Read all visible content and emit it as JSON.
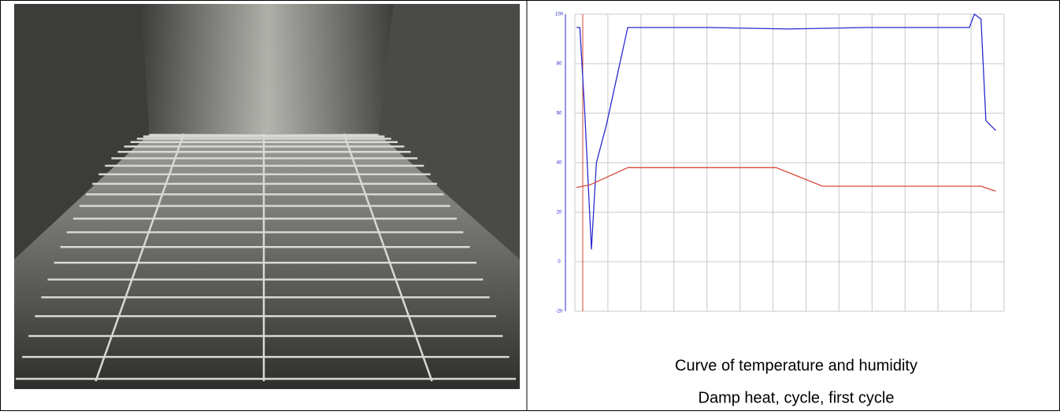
{
  "captions": [
    "Curve of temperature and humidity",
    "Damp heat, cycle, first cycle"
  ],
  "chart_data": {
    "type": "line",
    "xlim": [
      0,
      26
    ],
    "xticks": [
      0,
      2,
      4,
      6,
      8,
      10,
      12,
      14,
      16,
      18,
      20,
      22,
      24,
      26
    ],
    "ylim": [
      -20,
      100
    ],
    "yticks": [
      -20,
      0,
      20,
      40,
      60,
      80,
      100
    ],
    "grid": true,
    "series": [
      {
        "color": "#2a2ad0",
        "x": [
          0.1,
          0.3,
          0.6,
          1.0,
          1.3,
          1.9,
          3.2,
          8.1,
          12.9,
          17.7,
          23.9,
          24.2,
          24.6,
          24.9,
          25.2,
          25.5
        ],
        "values": [
          94.6,
          94.6,
          60,
          5,
          40,
          55,
          94.6,
          94.6,
          94,
          94.6,
          94.6,
          100,
          98,
          57,
          55,
          53
        ]
      },
      {
        "color": "#d84a3a",
        "x": [
          0.1,
          0.9,
          3.2,
          12.2,
          15,
          24.6,
          25.5
        ],
        "values": [
          30,
          31,
          38,
          38,
          30.5,
          30.5,
          28.5
        ]
      }
    ]
  }
}
